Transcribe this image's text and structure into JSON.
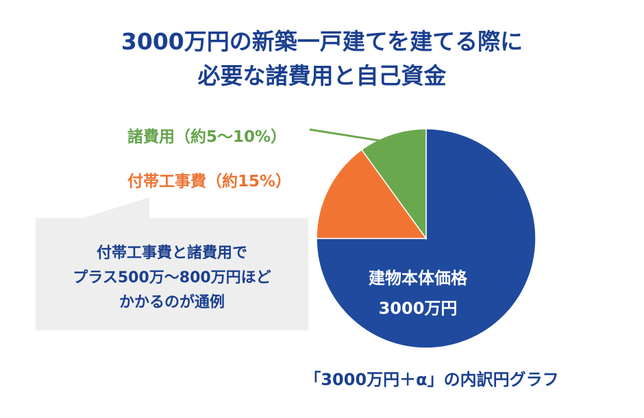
{
  "title": {
    "line1": "3000万円の新築一戸建てを建てる際に",
    "line2": "必要な諸費用と自己資金"
  },
  "callout": {
    "line1": "付帯工事費と諸費用で",
    "line2": "プラス500万〜800万円ほど",
    "line3": "かかるのが通例"
  },
  "caption": "「3000万円＋α」の内訳円グラフ",
  "chart_data": {
    "type": "pie",
    "title": "3000万円の新築一戸建てを建てる際に必要な諸費用と自己資金",
    "slices": [
      {
        "label": "建物本体価格",
        "sublabel": "3000万円",
        "value": 75,
        "color": "#1f4a9e"
      },
      {
        "label": "付帯工事費（約15%）",
        "value": 15,
        "color": "#f17432"
      },
      {
        "label": "諸費用（約5〜10%）",
        "value": 10,
        "color": "#6aa84f"
      }
    ],
    "start": "12 o'clock",
    "direction": "clockwise"
  },
  "colors": {
    "title": "#1a3f8f",
    "green_label": "#63a34a",
    "orange_label": "#ef7131",
    "callout_bg": "#eeeeee"
  }
}
